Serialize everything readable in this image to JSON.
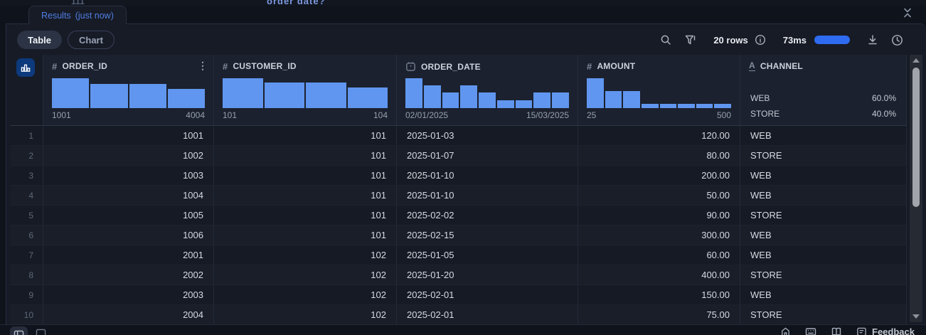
{
  "editor_strip": {
    "line_number": "111",
    "clipped_text": "order date?"
  },
  "results_tab": {
    "label": "Results",
    "timestamp": "(just now)"
  },
  "toolbar": {
    "table_label": "Table",
    "chart_label": "Chart",
    "rows_count": "20 rows",
    "duration": "73ms",
    "icons": [
      "search-icon",
      "filter-icon",
      "info-icon",
      "timing-bar",
      "download-icon",
      "history-icon"
    ]
  },
  "table": {
    "columns": [
      {
        "key": "ORDER_ID",
        "type": "number",
        "align": "right",
        "has_menu": true,
        "min": "1001",
        "max": "4004",
        "hist": [
          1,
          0.8,
          0.8,
          0.65
        ]
      },
      {
        "key": "CUSTOMER_ID",
        "type": "number",
        "align": "right",
        "min": "101",
        "max": "104",
        "hist": [
          1,
          0.85,
          0.85,
          0.7
        ]
      },
      {
        "key": "ORDER_DATE",
        "type": "date",
        "align": "left",
        "min": "02/01/2025",
        "max": "15/03/2025",
        "hist": [
          1,
          0.75,
          0.52,
          0.75,
          0.52,
          0.26,
          0.26,
          0.52,
          0.52
        ]
      },
      {
        "key": "AMOUNT",
        "type": "number",
        "align": "right",
        "min": "25",
        "max": "500",
        "hist": [
          1,
          0.58,
          0.58,
          0.15,
          0.15,
          0.15,
          0.15,
          0.15
        ]
      },
      {
        "key": "CHANNEL",
        "type": "text",
        "align": "left",
        "categories": [
          {
            "label": "WEB",
            "pct": "60.0%"
          },
          {
            "label": "STORE",
            "pct": "40.0%"
          }
        ]
      }
    ],
    "rows": [
      [
        "1001",
        "101",
        "2025-01-03",
        "120.00",
        "WEB"
      ],
      [
        "1002",
        "101",
        "2025-01-07",
        "80.00",
        "STORE"
      ],
      [
        "1003",
        "101",
        "2025-01-10",
        "200.00",
        "WEB"
      ],
      [
        "1004",
        "101",
        "2025-01-10",
        "50.00",
        "WEB"
      ],
      [
        "1005",
        "101",
        "2025-02-02",
        "90.00",
        "STORE"
      ],
      [
        "1006",
        "101",
        "2025-02-15",
        "300.00",
        "WEB"
      ],
      [
        "2001",
        "102",
        "2025-01-05",
        "60.00",
        "WEB"
      ],
      [
        "2002",
        "102",
        "2025-01-20",
        "400.00",
        "STORE"
      ],
      [
        "2003",
        "102",
        "2025-02-01",
        "150.00",
        "WEB"
      ],
      [
        "2004",
        "102",
        "2025-02-01",
        "75.00",
        "STORE"
      ]
    ]
  },
  "bottom_bar": {
    "feedback_label": "Feedback",
    "icons": [
      "panel-left-icon",
      "panel-bottom-icon",
      "home-icon",
      "keyboard-icon",
      "docs-book-icon",
      "feedback-doc-icon"
    ]
  },
  "colors": {
    "accent_blue": "#2e6bf0",
    "histogram_bar": "#6096ef",
    "tab_text": "#4f7fe2",
    "stats_button_bg": "#0d3a7c"
  }
}
